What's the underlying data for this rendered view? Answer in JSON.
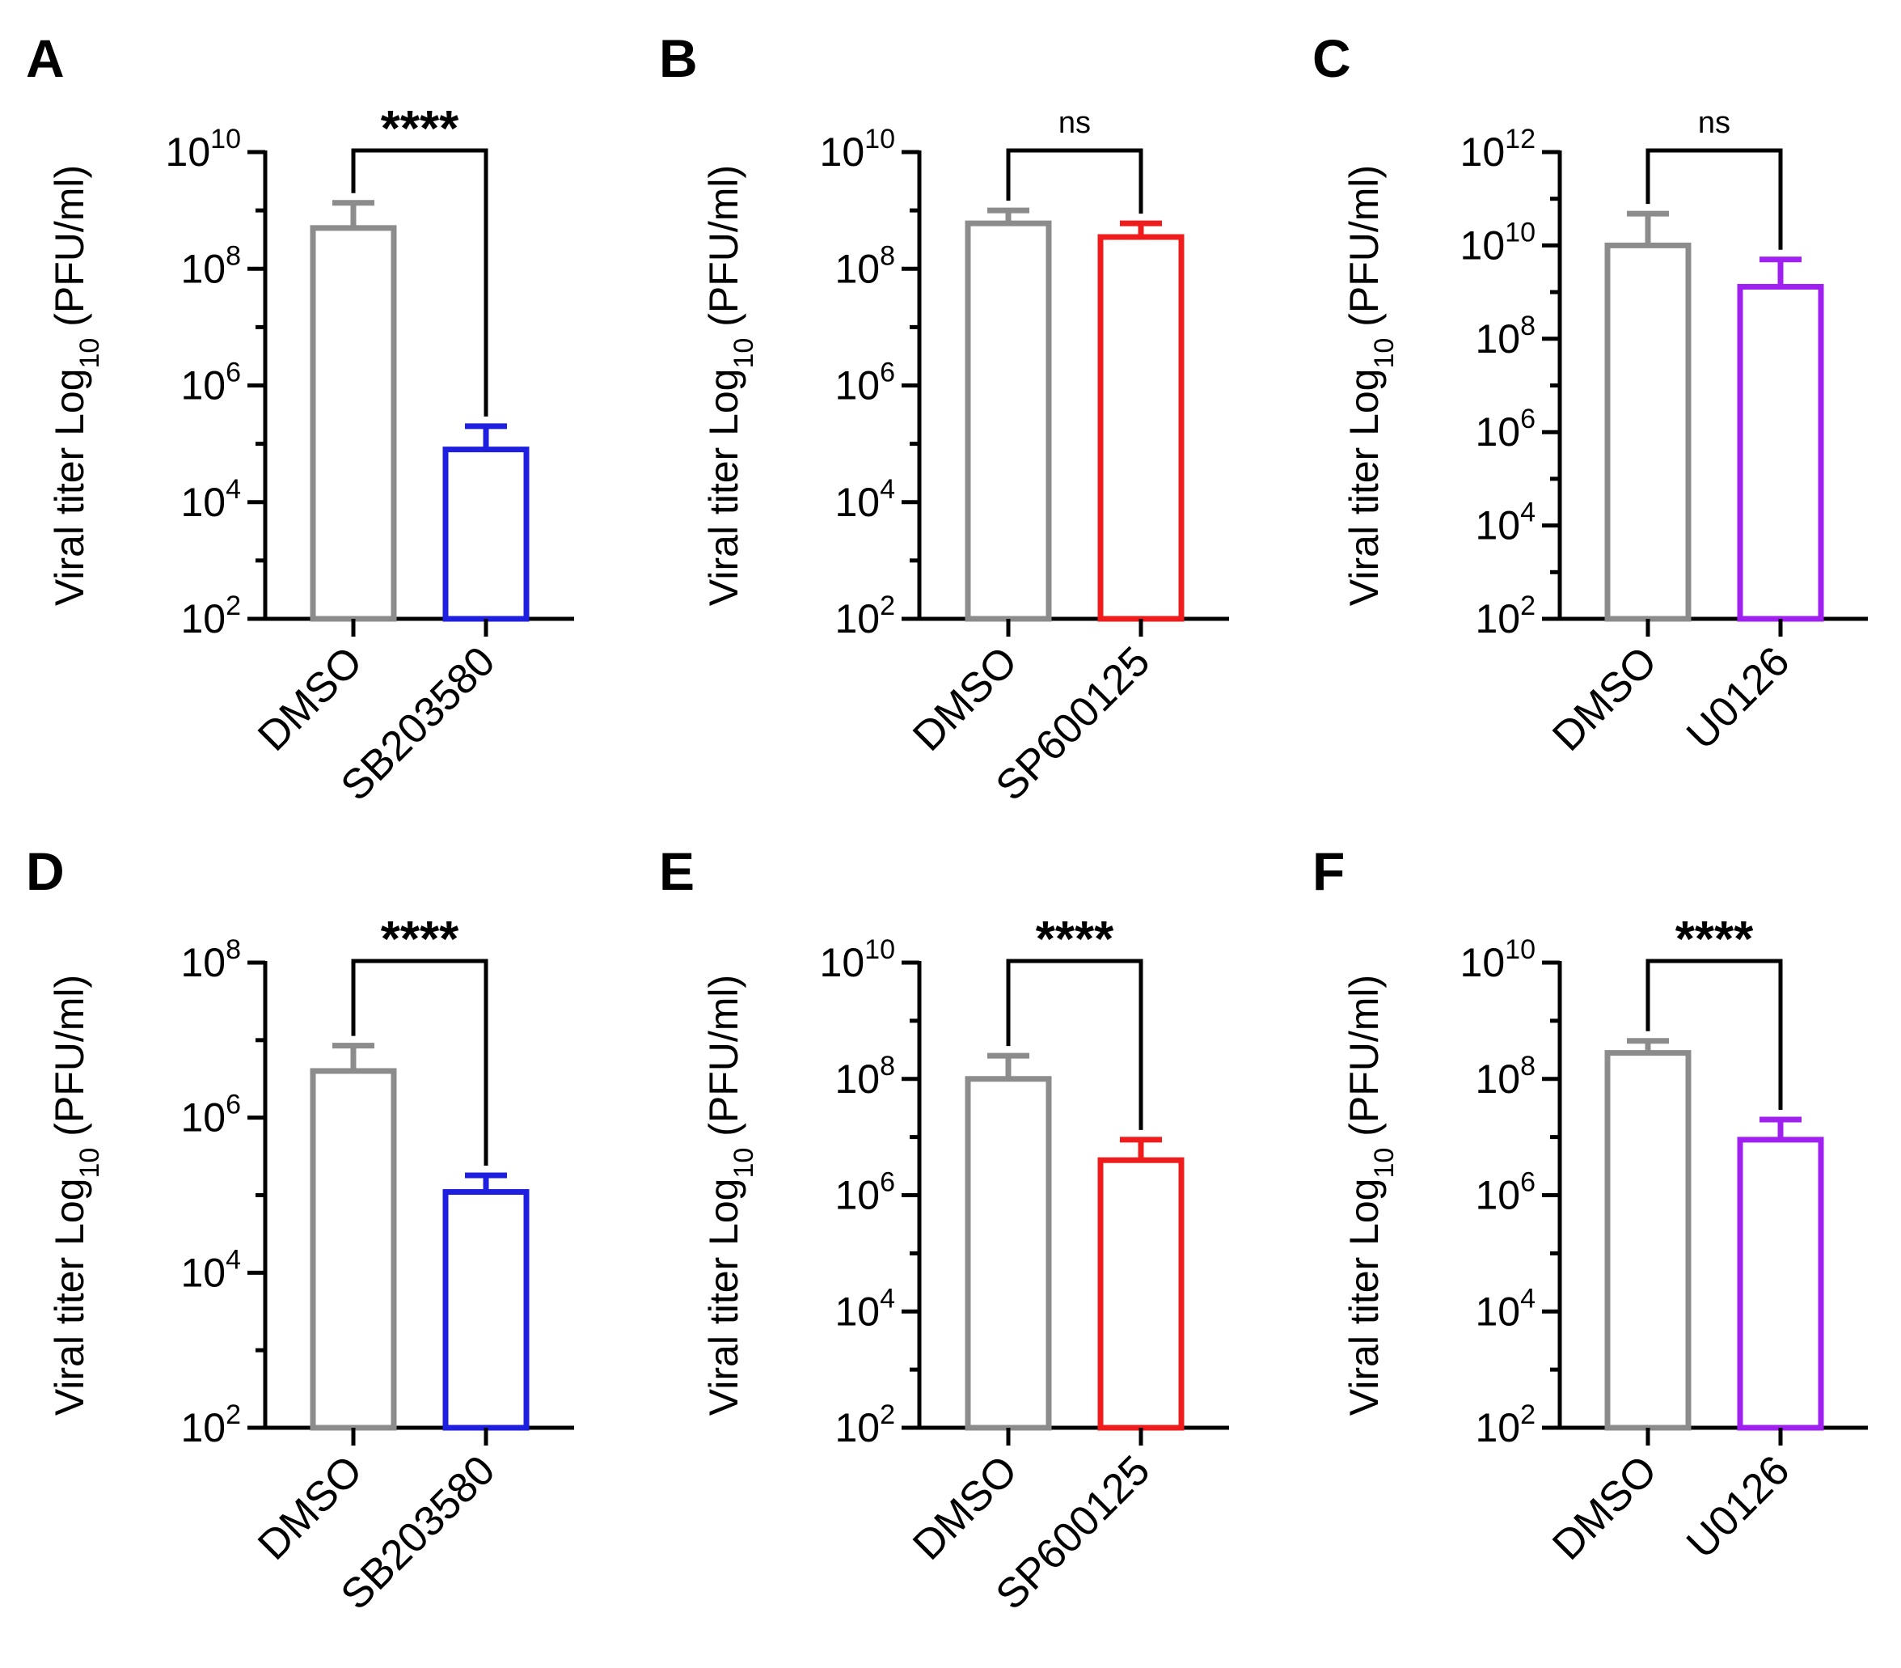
{
  "figure_title": "",
  "chart_data": [
    {
      "panel": "A",
      "type": "bar",
      "ylabel": "Viral titer Log10 (PFU/ml)",
      "yscale": "log10",
      "ylim_exp": [
        2,
        10
      ],
      "ytick_exps": [
        "2",
        "4",
        "6",
        "8",
        "10"
      ],
      "categories": [
        "DMSO",
        "SB203580"
      ],
      "values": [
        500000000,
        80000
      ],
      "error_upper": [
        1350000000,
        200000
      ],
      "colors": [
        "#8c8c8c",
        "#1f1fe0"
      ],
      "significance": "****"
    },
    {
      "panel": "B",
      "type": "bar",
      "ylabel": "Viral titer Log10 (PFU/ml)",
      "yscale": "log10",
      "ylim_exp": [
        2,
        10
      ],
      "ytick_exps": [
        "2",
        "4",
        "6",
        "8",
        "10"
      ],
      "categories": [
        "DMSO",
        "SP600125"
      ],
      "values": [
        600000000,
        350000000
      ],
      "error_upper": [
        1000000000,
        600000000
      ],
      "colors": [
        "#8c8c8c",
        "#ee1c1c"
      ],
      "significance": "ns"
    },
    {
      "panel": "C",
      "type": "bar",
      "ylabel": "Viral titer Log10 (PFU/ml)",
      "yscale": "log10",
      "ylim_exp": [
        2,
        12
      ],
      "ytick_exps": [
        "2",
        "4",
        "6",
        "8",
        "10",
        "12"
      ],
      "categories": [
        "DMSO",
        "U0126"
      ],
      "values": [
        10000000000,
        1300000000
      ],
      "error_upper": [
        48000000000,
        5000000000
      ],
      "colors": [
        "#8c8c8c",
        "#a020f0"
      ],
      "significance": "ns"
    },
    {
      "panel": "D",
      "type": "bar",
      "ylabel": "Viral titer Log10 (PFU/ml)",
      "yscale": "log10",
      "ylim_exp": [
        2,
        8
      ],
      "ytick_exps": [
        "2",
        "4",
        "6",
        "8"
      ],
      "categories": [
        "DMSO",
        "SB203580"
      ],
      "values": [
        4000000,
        110000
      ],
      "error_upper": [
        8500000,
        180000
      ],
      "colors": [
        "#8c8c8c",
        "#1f1fe0"
      ],
      "significance": "****"
    },
    {
      "panel": "E",
      "type": "bar",
      "ylabel": "Viral titer Log10 (PFU/ml)",
      "yscale": "log10",
      "ylim_exp": [
        2,
        10
      ],
      "ytick_exps": [
        "2",
        "4",
        "6",
        "8",
        "10"
      ],
      "categories": [
        "DMSO",
        "SP600125"
      ],
      "values": [
        100000000,
        4000000
      ],
      "error_upper": [
        250000000,
        9000000
      ],
      "colors": [
        "#8c8c8c",
        "#ee1c1c"
      ],
      "significance": "****"
    },
    {
      "panel": "F",
      "type": "bar",
      "ylabel": "Viral titer Log10 (PFU/ml)",
      "yscale": "log10",
      "ylim_exp": [
        2,
        10
      ],
      "ytick_exps": [
        "2",
        "4",
        "6",
        "8",
        "10"
      ],
      "categories": [
        "DMSO",
        "U0126"
      ],
      "values": [
        280000000,
        9000000
      ],
      "error_upper": [
        450000000,
        20000000
      ],
      "colors": [
        "#8c8c8c",
        "#a020f0"
      ],
      "significance": "****"
    }
  ]
}
